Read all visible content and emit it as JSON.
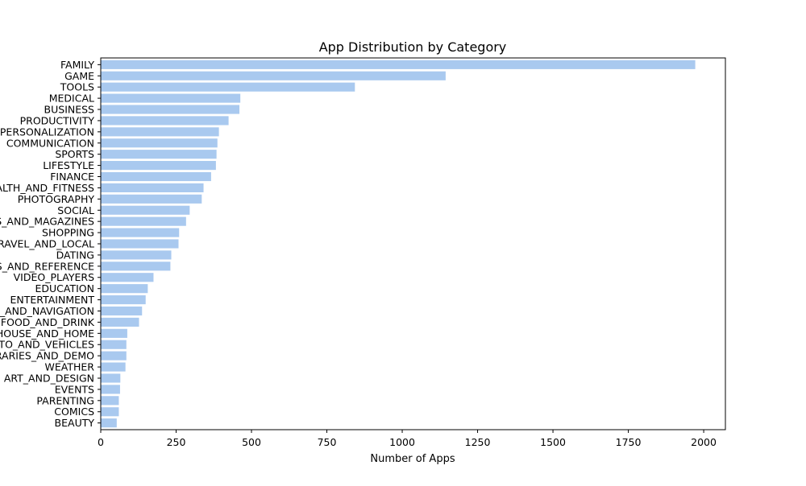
{
  "chart_data": {
    "type": "bar",
    "orientation": "horizontal",
    "title": "App Distribution by Category",
    "xlabel": "Number of Apps",
    "ylabel": "",
    "xlim": [
      0,
      2072
    ],
    "xticks": [
      0,
      250,
      500,
      750,
      1000,
      1250,
      1500,
      1750,
      2000
    ],
    "grid": false,
    "bar_color": "#a9c9ef",
    "categories": [
      "FAMILY",
      "GAME",
      "TOOLS",
      "MEDICAL",
      "BUSINESS",
      "PRODUCTIVITY",
      "PERSONALIZATION",
      "COMMUNICATION",
      "SPORTS",
      "LIFESTYLE",
      "FINANCE",
      "HEALTH_AND_FITNESS",
      "PHOTOGRAPHY",
      "SOCIAL",
      "NEWS_AND_MAGAZINES",
      "SHOPPING",
      "TRAVEL_AND_LOCAL",
      "DATING",
      "BOOKS_AND_REFERENCE",
      "VIDEO_PLAYERS",
      "EDUCATION",
      "ENTERTAINMENT",
      "MAPS_AND_NAVIGATION",
      "FOOD_AND_DRINK",
      "HOUSE_AND_HOME",
      "AUTO_AND_VEHICLES",
      "LIBRARIES_AND_DEMO",
      "WEATHER",
      "ART_AND_DESIGN",
      "EVENTS",
      "PARENTING",
      "COMICS",
      "BEAUTY"
    ],
    "values": [
      1972,
      1144,
      843,
      463,
      460,
      424,
      392,
      387,
      384,
      382,
      366,
      341,
      335,
      295,
      283,
      260,
      258,
      234,
      231,
      175,
      156,
      149,
      137,
      127,
      88,
      85,
      85,
      82,
      65,
      64,
      60,
      60,
      53
    ]
  }
}
